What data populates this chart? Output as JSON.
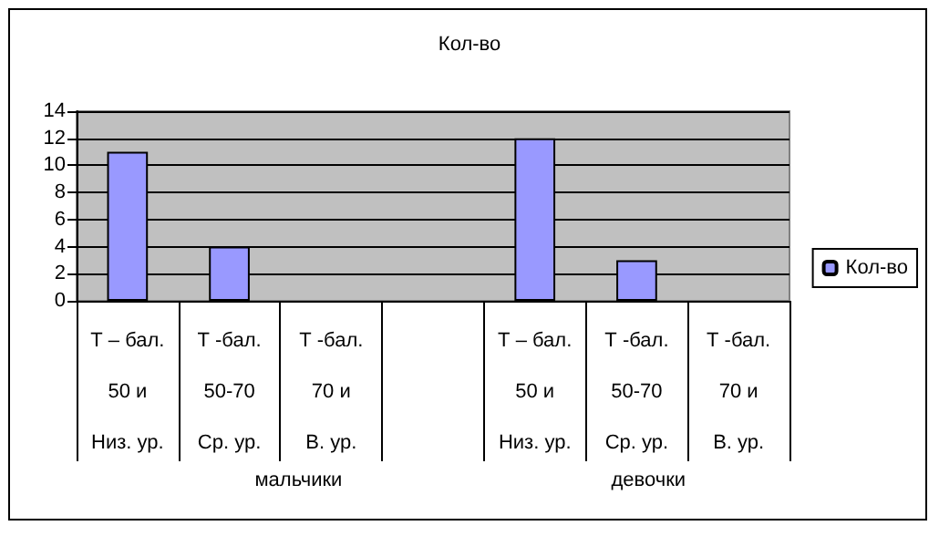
{
  "chart_data": {
    "type": "bar",
    "title": "Кол-во",
    "categories": [
      "Т – бал.\n50 и\nНиз. ур.",
      "Т -бал.\n50-70\nСр. ур.",
      "Т -бал.\n70 и\nВ. ур.",
      null,
      "Т – бал.\n50 и\nНиз. ур.",
      "Т -бал.\n50-70\nСр. ур.",
      "Т -бал.\n70 и\nВ. ур."
    ],
    "series": [
      {
        "name": "Кол-во",
        "color": "#9999ff",
        "values": [
          11,
          4,
          null,
          null,
          12,
          3,
          null
        ]
      }
    ],
    "annotations": [
      "мальчики",
      "девочки"
    ],
    "ylim": [
      0,
      14
    ],
    "yticks": [
      0,
      2,
      4,
      6,
      8,
      10,
      12,
      14
    ],
    "grid": "y",
    "legend": "right"
  }
}
